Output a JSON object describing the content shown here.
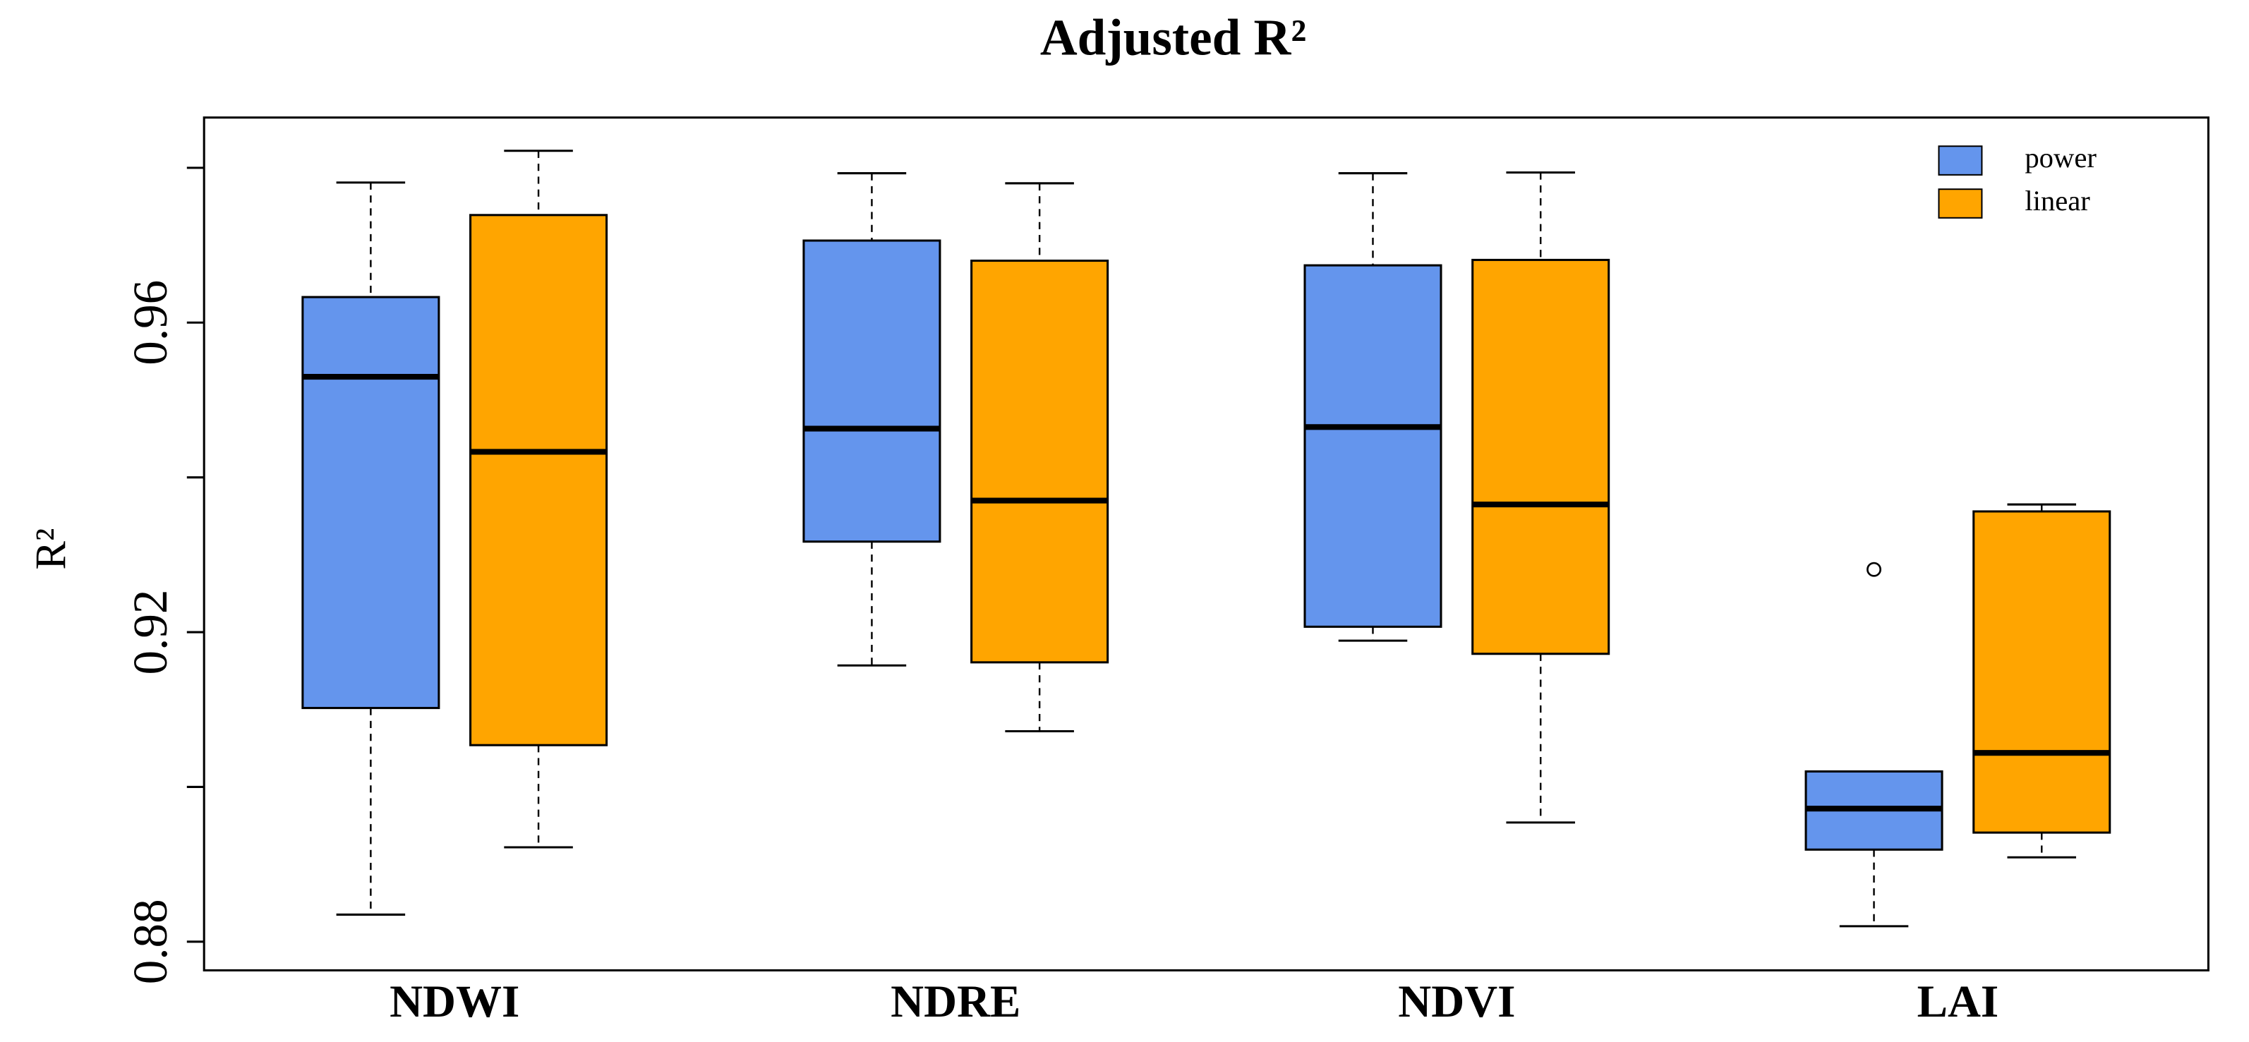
{
  "chart_data": {
    "type": "box",
    "title": "Adjusted R²",
    "y_label": "R²",
    "categories": [
      "NDWI",
      "NDRE",
      "NDVI",
      "LAI"
    ],
    "ylim": [
      0.8763,
      0.9865
    ],
    "yticks": [
      0.88,
      0.92,
      0.96
    ],
    "minor_yticks": [
      0.9,
      0.94,
      0.98
    ],
    "legend": "top-right",
    "series": [
      {
        "name": "power",
        "color": "#6495ed",
        "whisker_low": [
          0.8835,
          0.9157,
          0.9189,
          0.882
        ],
        "q1": [
          0.9102,
          0.9317,
          0.9207,
          0.8919
        ],
        "median": [
          0.953,
          0.9463,
          0.9465,
          0.8972
        ],
        "q3": [
          0.9633,
          0.9706,
          0.9674,
          0.902
        ],
        "whisker_high": [
          0.9781,
          0.9793,
          0.9793,
          0.902
        ],
        "outliers": [
          [],
          [],
          [],
          [
            0.9281
          ]
        ]
      },
      {
        "name": "linear",
        "color": "#ffa500",
        "whisker_low": [
          0.8922,
          0.9072,
          0.8954,
          0.8909
        ],
        "q1": [
          0.9054,
          0.9161,
          0.9172,
          0.8941
        ],
        "median": [
          0.9433,
          0.937,
          0.9365,
          0.9044
        ],
        "q3": [
          0.9739,
          0.968,
          0.9681,
          0.9356
        ],
        "whisker_high": [
          0.9822,
          0.978,
          0.9794,
          0.9365
        ],
        "outliers": [
          [],
          [],
          [],
          []
        ]
      }
    ]
  }
}
